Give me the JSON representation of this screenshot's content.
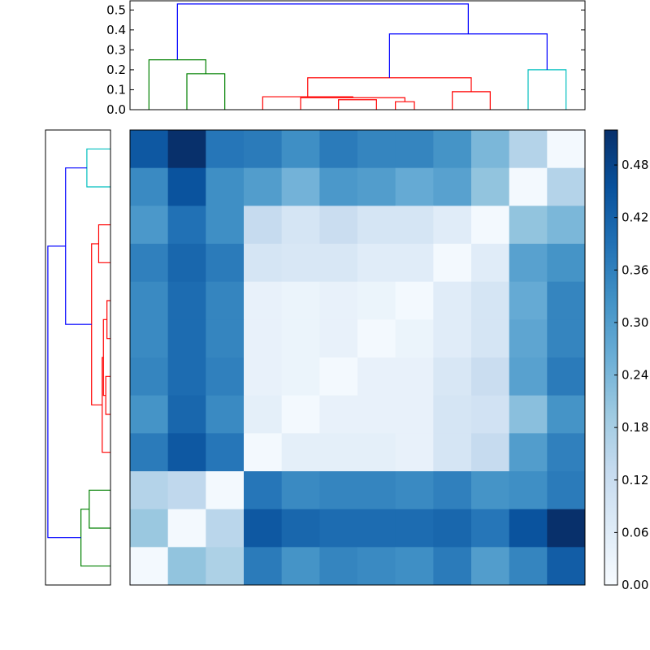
{
  "chart_data": {
    "type": "heatmap",
    "title": "",
    "xlabel": "",
    "ylabel": "",
    "n": 12,
    "matrix": [
      [
        0.44,
        0.52,
        0.38,
        0.37,
        0.33,
        0.37,
        0.35,
        0.35,
        0.32,
        0.24,
        0.16,
        0.01
      ],
      [
        0.34,
        0.45,
        0.33,
        0.3,
        0.25,
        0.31,
        0.3,
        0.27,
        0.29,
        0.21,
        0.01,
        0.16
      ],
      [
        0.31,
        0.39,
        0.33,
        0.13,
        0.09,
        0.12,
        0.09,
        0.09,
        0.06,
        0.01,
        0.21,
        0.24
      ],
      [
        0.36,
        0.41,
        0.37,
        0.09,
        0.08,
        0.08,
        0.06,
        0.06,
        0.01,
        0.06,
        0.29,
        0.32
      ],
      [
        0.34,
        0.4,
        0.35,
        0.04,
        0.03,
        0.04,
        0.03,
        0.01,
        0.06,
        0.09,
        0.27,
        0.35
      ],
      [
        0.34,
        0.4,
        0.35,
        0.04,
        0.03,
        0.04,
        0.01,
        0.03,
        0.06,
        0.09,
        0.28,
        0.35
      ],
      [
        0.35,
        0.4,
        0.36,
        0.04,
        0.03,
        0.01,
        0.04,
        0.04,
        0.08,
        0.12,
        0.29,
        0.37
      ],
      [
        0.32,
        0.41,
        0.34,
        0.05,
        0.01,
        0.04,
        0.04,
        0.04,
        0.09,
        0.1,
        0.22,
        0.32
      ],
      [
        0.37,
        0.44,
        0.38,
        0.01,
        0.05,
        0.05,
        0.05,
        0.04,
        0.09,
        0.13,
        0.3,
        0.36
      ],
      [
        0.16,
        0.14,
        0.01,
        0.38,
        0.34,
        0.35,
        0.35,
        0.34,
        0.36,
        0.32,
        0.33,
        0.37
      ],
      [
        0.2,
        0.01,
        0.15,
        0.44,
        0.41,
        0.4,
        0.4,
        0.4,
        0.41,
        0.38,
        0.45,
        0.52
      ],
      [
        0.01,
        0.21,
        0.17,
        0.37,
        0.32,
        0.35,
        0.34,
        0.33,
        0.37,
        0.3,
        0.35,
        0.43
      ]
    ],
    "colorbar": {
      "min": 0.0,
      "max": 0.52,
      "ticks": [
        0.0,
        0.06,
        0.12,
        0.18,
        0.24,
        0.3,
        0.36,
        0.42,
        0.48
      ],
      "tick_labels": [
        "0.00",
        "0.06",
        "0.12",
        "0.18",
        "0.24",
        "0.30",
        "0.36",
        "0.42",
        "0.48"
      ],
      "colormap": "Blues"
    },
    "top_dendrogram": {
      "ylim": [
        0,
        0.55
      ],
      "yticks": [
        0.0,
        0.1,
        0.2,
        0.3,
        0.4,
        0.5
      ],
      "ytick_labels": [
        "0.0",
        "0.1",
        "0.2",
        "0.3",
        "0.4",
        "0.5"
      ],
      "links": [
        {
          "left": 1,
          "right": 2,
          "height": 0.18,
          "color": "#008000"
        },
        {
          "left": 0,
          "right": 1.5,
          "height": 0.25,
          "color": "#008000"
        },
        {
          "left": 5,
          "right": 6,
          "height": 0.05,
          "color": "#ff0000"
        },
        {
          "left": 6.5,
          "right": 7,
          "height": 0.04,
          "color": "#ff0000"
        },
        {
          "left": 4,
          "right": 6.75,
          "height": 0.06,
          "color": "#ff0000"
        },
        {
          "left": 3,
          "right": 5.375,
          "height": 0.065,
          "color": "#ff0000"
        },
        {
          "left": 8,
          "right": 9,
          "height": 0.09,
          "color": "#ff0000"
        },
        {
          "left": 4.1875,
          "right": 8.5,
          "height": 0.16,
          "color": "#ff0000"
        },
        {
          "left": 10,
          "right": 11,
          "height": 0.2,
          "color": "#00bfbf"
        },
        {
          "left": 6.34375,
          "right": 10.5,
          "height": 0.38,
          "color": "#0000ff"
        },
        {
          "left": 0.75,
          "right": 8.421875,
          "height": 0.53,
          "color": "#0000ff"
        }
      ]
    },
    "left_dendrogram": {
      "xlim": [
        0.55,
        0
      ],
      "links": [
        {
          "top": 0,
          "bottom": 1,
          "height": 0.2,
          "color": "#00bfbf"
        },
        {
          "top": 2,
          "bottom": 3,
          "height": 0.1,
          "color": "#ff0000"
        },
        {
          "top": 4,
          "bottom": 5,
          "height": 0.03,
          "color": "#ff0000"
        },
        {
          "top": 6,
          "bottom": 7,
          "height": 0.04,
          "color": "#ff0000"
        },
        {
          "top": 4.5,
          "bottom": 6.5,
          "height": 0.06,
          "color": "#ff0000"
        },
        {
          "top": 5.5,
          "bottom": 8,
          "height": 0.07,
          "color": "#ff0000"
        },
        {
          "top": 2.5,
          "bottom": 6.75,
          "height": 0.16,
          "color": "#ff0000"
        },
        {
          "top": 0.5,
          "bottom": 4.625,
          "height": 0.38,
          "color": "#0000ff"
        },
        {
          "top": 9,
          "bottom": 10,
          "height": 0.18,
          "color": "#008000"
        },
        {
          "top": 9.5,
          "bottom": 11,
          "height": 0.25,
          "color": "#008000"
        },
        {
          "top": 2.5625,
          "bottom": 10.25,
          "height": 0.53,
          "color": "#0000ff"
        }
      ]
    }
  }
}
